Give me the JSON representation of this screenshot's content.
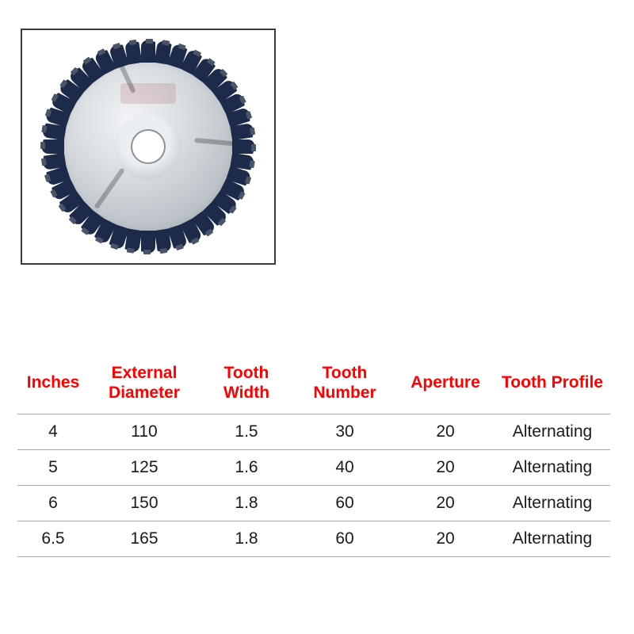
{
  "product_image": {
    "tooth_count": 40,
    "slot_angles": [
      35,
      155,
      275
    ],
    "colors": {
      "tooth_body": "#1e2a4a",
      "tooth_tip": "#4a5568",
      "disc_face": "#c5ccd2",
      "frame_border": "#3b3b3b"
    }
  },
  "table": {
    "header_color": "#ff0000",
    "profile_text_color": "#ff0000",
    "cell_text_color": "#1a1a1a",
    "border_color": "#a8a8a8",
    "columns": [
      {
        "key": "inches",
        "label": "Inches"
      },
      {
        "key": "ext",
        "label": "External\nDiameter"
      },
      {
        "key": "tw",
        "label": "Tooth\nWidth"
      },
      {
        "key": "tn",
        "label": "Tooth\nNumber"
      },
      {
        "key": "aperture",
        "label": "Aperture"
      },
      {
        "key": "profile",
        "label": "Tooth\nProfile"
      }
    ],
    "rows": [
      {
        "inches": "4",
        "ext": "110",
        "tw": "1.5",
        "tn": "30",
        "aperture": "20",
        "profile": "Alternating"
      },
      {
        "inches": "5",
        "ext": "125",
        "tw": "1.6",
        "tn": "40",
        "aperture": "20",
        "profile": "Alternating"
      },
      {
        "inches": "6",
        "ext": "150",
        "tw": "1.8",
        "tn": "60",
        "aperture": "20",
        "profile": "Alternating"
      },
      {
        "inches": "6.5",
        "ext": "165",
        "tw": "1.8",
        "tn": "60",
        "aperture": "20",
        "profile": "Alternating"
      }
    ]
  }
}
